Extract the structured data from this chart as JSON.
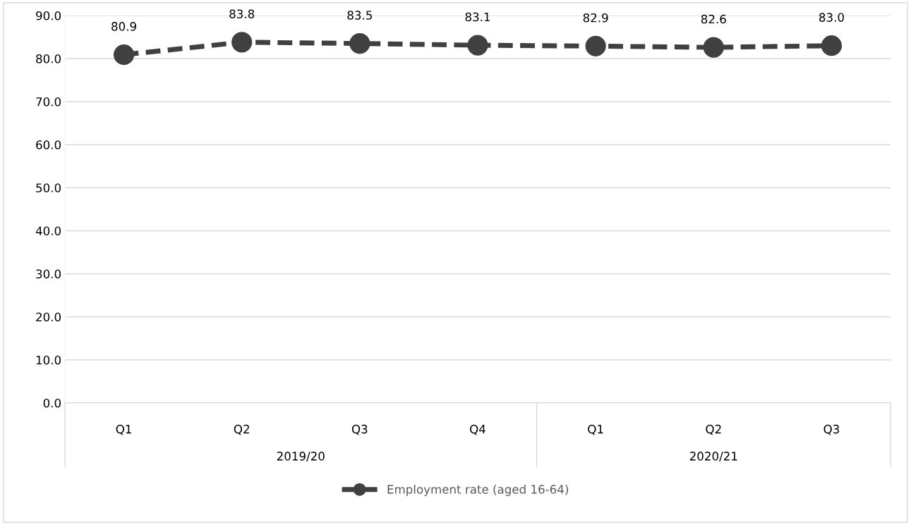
{
  "chart_data": {
    "type": "line",
    "categories": [
      "Q1",
      "Q2",
      "Q3",
      "Q4",
      "Q1",
      "Q2",
      "Q3"
    ],
    "series": [
      {
        "name": "Employment rate (aged 16-64)",
        "color": "#404040",
        "values": [
          80.9,
          83.8,
          83.5,
          83.1,
          82.9,
          82.6,
          83.0
        ],
        "value_labels": [
          "80.9",
          "83.8",
          "83.5",
          "83.1",
          "82.9",
          "82.6",
          "83.0"
        ]
      }
    ],
    "annotations": [
      "2019/20",
      "2020/21"
    ],
    "ylim": [
      0,
      90
    ],
    "yticks": [
      {
        "value": 0,
        "label": "0.0"
      },
      {
        "value": 10,
        "label": "10.0"
      },
      {
        "value": 20,
        "label": "20.0"
      },
      {
        "value": 30,
        "label": "30.0"
      },
      {
        "value": 40,
        "label": "40.0"
      },
      {
        "value": 50,
        "label": "50.0"
      },
      {
        "value": 60,
        "label": "60.0"
      },
      {
        "value": 70,
        "label": "70.0"
      },
      {
        "value": 80,
        "label": "80.0"
      },
      {
        "value": 90,
        "label": "90.0"
      }
    ],
    "grid": "y",
    "legend": "bottom",
    "marker": "circle",
    "line_style": "dashed"
  }
}
